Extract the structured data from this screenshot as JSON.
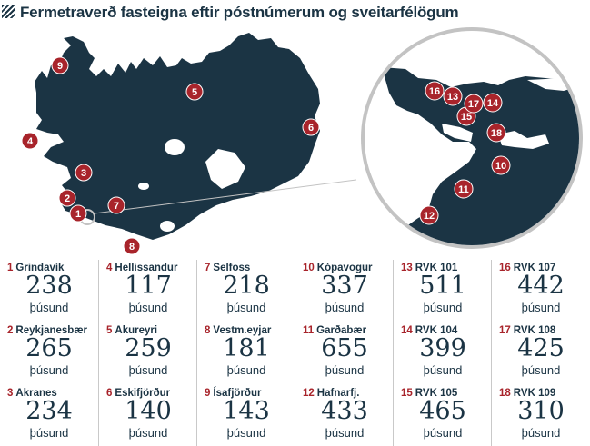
{
  "title": "Fermetraverð fasteigna eftir póstnúmerum og sveitarfélögum",
  "unit": "þúsund",
  "colors": {
    "navy": "#1b3444",
    "marker": "#a8242b",
    "ring": "#c3c3c3"
  },
  "items": [
    {
      "num": "1",
      "name": "Grindavík",
      "value": "238"
    },
    {
      "num": "2",
      "name": "Reykjanesbær",
      "value": "265"
    },
    {
      "num": "3",
      "name": "Akranes",
      "value": "234"
    },
    {
      "num": "4",
      "name": "Hellissandur",
      "value": "117"
    },
    {
      "num": "5",
      "name": "Akureyri",
      "value": "259"
    },
    {
      "num": "6",
      "name": "Eskifjörður",
      "value": "140"
    },
    {
      "num": "7",
      "name": "Selfoss",
      "value": "218"
    },
    {
      "num": "8",
      "name": "Vestm.eyjar",
      "value": "181"
    },
    {
      "num": "9",
      "name": "Ísafjörður",
      "value": "143"
    },
    {
      "num": "10",
      "name": "Kópavogur",
      "value": "337"
    },
    {
      "num": "11",
      "name": "Garðabær",
      "value": "655"
    },
    {
      "num": "12",
      "name": "Hafnarfj.",
      "value": "433"
    },
    {
      "num": "13",
      "name": "RVK 101",
      "value": "511"
    },
    {
      "num": "14",
      "name": "RVK 104",
      "value": "399"
    },
    {
      "num": "15",
      "name": "RVK 105",
      "value": "465"
    },
    {
      "num": "16",
      "name": "RVK 107",
      "value": "442"
    },
    {
      "num": "17",
      "name": "RVK 108",
      "value": "425"
    },
    {
      "num": "18",
      "name": "RVK 109",
      "value": "310"
    }
  ]
}
